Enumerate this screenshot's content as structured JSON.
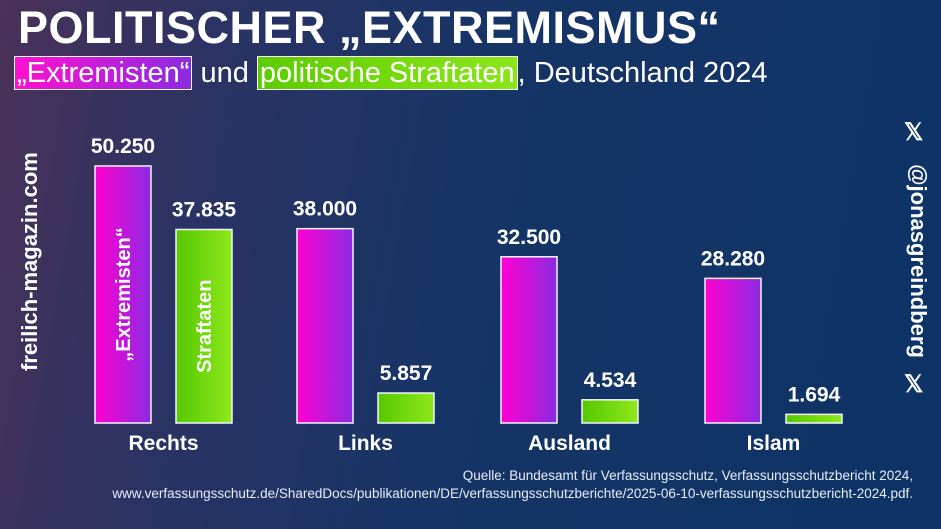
{
  "title": "POLITISCHER „EXTREMISMUS“",
  "subtitle": {
    "part1": "„Extremisten“",
    "part2": " und ",
    "part3": "politische Straftaten",
    "part4": ", Deutschland 2024"
  },
  "left_credit": "freilich-magazin.com",
  "right_credit": "@jonasgreindberg",
  "x_icon": "𝕏",
  "source": {
    "line1": "Quelle: Bundesamt für Verfassungsschutz, Verfassungsschutzbericht 2024,",
    "line2": "www.verfassungsschutz.de/SharedDocs/publikationen/DE/verfassungsschutzberichte/2025-06-10-verfassungsschutzbericht-2024.pdf."
  },
  "colors": {
    "extremisten": [
      "#ff00d0",
      "#8a2be2"
    ],
    "straftaten": [
      "#55c800",
      "#8ee81c"
    ],
    "background": "#0d3366"
  },
  "chart_data": {
    "type": "bar",
    "categories": [
      "Rechts",
      "Links",
      "Ausland",
      "Islam"
    ],
    "series": [
      {
        "name": "„Extremisten“",
        "values": [
          50250,
          38000,
          32500,
          28280
        ],
        "labels": [
          "50.250",
          "38.000",
          "32.500",
          "28.280"
        ]
      },
      {
        "name": "Straftaten",
        "values": [
          37835,
          5857,
          4534,
          1694
        ],
        "labels": [
          "37.835",
          "5.857",
          "4.534",
          "1.694"
        ]
      }
    ],
    "ylim": [
      0,
      50250
    ],
    "grid": false,
    "legend": "inside-bars"
  }
}
